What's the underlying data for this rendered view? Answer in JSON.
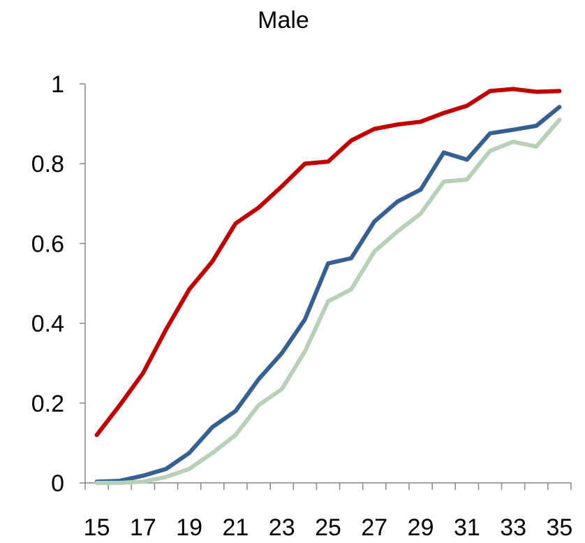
{
  "chart_data": {
    "type": "line",
    "title": "Male",
    "xlabel": "",
    "ylabel": "",
    "x": [
      15,
      16,
      17,
      18,
      19,
      20,
      21,
      22,
      23,
      24,
      25,
      26,
      27,
      28,
      29,
      30,
      31,
      32,
      33,
      34,
      35
    ],
    "x_tick_labels": [
      "15",
      "17",
      "19",
      "21",
      "23",
      "25",
      "27",
      "29",
      "31",
      "33",
      "35"
    ],
    "y_tick_labels": [
      "0",
      "0.2",
      "0.4",
      "0.6",
      "0.8",
      "1"
    ],
    "y_ticks": [
      0,
      0.2,
      0.4,
      0.6,
      0.8,
      1
    ],
    "xlim": [
      14.5,
      35.5
    ],
    "ylim": [
      0,
      1
    ],
    "grid": false,
    "legend": "none",
    "series": [
      {
        "color": "#c00000",
        "values": [
          0.12,
          0.195,
          0.275,
          0.385,
          0.485,
          0.555,
          0.65,
          0.69,
          0.743,
          0.8,
          0.805,
          0.858,
          0.887,
          0.898,
          0.905,
          0.927,
          0.945,
          0.982,
          0.987,
          0.98,
          0.982
        ]
      },
      {
        "color": "#366092",
        "values": [
          0.003,
          0.005,
          0.018,
          0.035,
          0.075,
          0.14,
          0.18,
          0.26,
          0.325,
          0.41,
          0.55,
          0.563,
          0.655,
          0.705,
          0.735,
          0.828,
          0.81,
          0.876,
          0.885,
          0.895,
          0.942
        ]
      },
      {
        "color": "#b8cfb8",
        "values": [
          0.0,
          0.0,
          0.003,
          0.015,
          0.035,
          0.075,
          0.12,
          0.195,
          0.235,
          0.33,
          0.455,
          0.485,
          0.58,
          0.63,
          0.675,
          0.755,
          0.76,
          0.832,
          0.855,
          0.843,
          0.91
        ]
      }
    ]
  }
}
